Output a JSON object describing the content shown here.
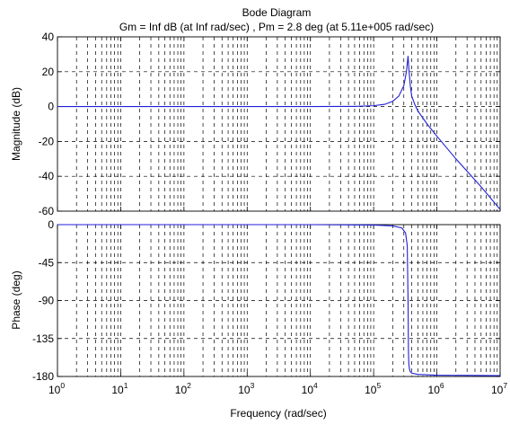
{
  "chart_data": {
    "type": "line",
    "title": "Bode Diagram",
    "subtitle": "Gm = Inf dB (at Inf rad/sec) ,  Pm = 2.8 deg (at 5.11e+005 rad/sec)",
    "xlabel": "Frequency  (rad/sec)",
    "x_scale": "log",
    "xlim": [
      1,
      10000000
    ],
    "x_ticks": [
      {
        "base": "10",
        "exp": "0"
      },
      {
        "base": "10",
        "exp": "1"
      },
      {
        "base": "10",
        "exp": "2"
      },
      {
        "base": "10",
        "exp": "3"
      },
      {
        "base": "10",
        "exp": "4"
      },
      {
        "base": "10",
        "exp": "5"
      },
      {
        "base": "10",
        "exp": "6"
      },
      {
        "base": "10",
        "exp": "7"
      }
    ],
    "grid": true,
    "panels": [
      {
        "name": "magnitude",
        "ylabel": "Magnitude (dB)",
        "ylim": [
          -60,
          40
        ],
        "y_ticks": [
          "40",
          "20",
          "0",
          "-20",
          "-40",
          "-60"
        ],
        "series": [
          {
            "color": "#1f1fd8",
            "x": [
              1,
              10,
              100,
              1000,
              10000,
              50000,
              100000,
              150000,
              200000,
              250000,
              300000,
              330000,
              350000,
              360000,
              380000,
              400000,
              450000,
              500000,
              700000,
              1000000,
              2000000,
              5000000,
              10000000
            ],
            "y": [
              0,
              0,
              0,
              0,
              0,
              0.1,
              0.5,
              1.3,
              3.0,
              6.0,
              12.0,
              20.0,
              29.0,
              22.0,
              12.0,
              6.0,
              1.0,
              -2.5,
              -10.0,
              -17.0,
              -30.0,
              -46.0,
              -59.0
            ]
          }
        ]
      },
      {
        "name": "phase",
        "ylabel": "Phase (deg)",
        "ylim": [
          -180,
          0
        ],
        "y_ticks": [
          "0",
          "-45",
          "-90",
          "-135",
          "-180"
        ],
        "series": [
          {
            "color": "#1f1fd8",
            "x": [
              1,
              10,
              100,
              1000,
              10000,
              100000,
              200000,
              280000,
              320000,
              340000,
              350000,
              355000,
              360000,
              370000,
              380000,
              400000,
              500000,
              1000000,
              10000000
            ],
            "y": [
              0,
              0,
              0,
              0,
              0,
              -0.5,
              -1.5,
              -4,
              -10,
              -25,
              -90,
              -150,
              -165,
              -172,
              -174.5,
              -176,
              -177.5,
              -178.5,
              -179
            ]
          }
        ]
      }
    ]
  }
}
